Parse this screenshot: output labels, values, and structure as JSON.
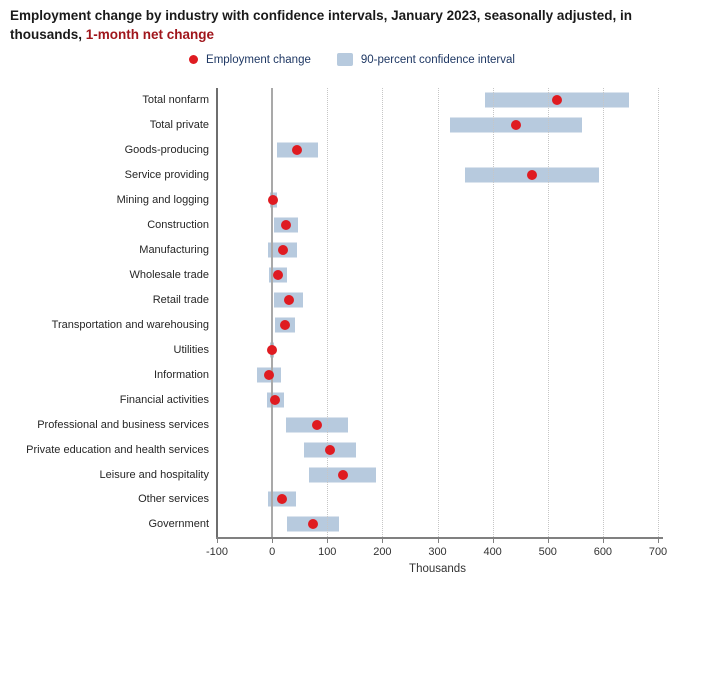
{
  "title": {
    "text": "Employment change by industry with confidence intervals, January 2023, seasonally adjusted, in thousands, ",
    "highlight": "1-month net change"
  },
  "legend": {
    "items": [
      {
        "label": "Employment change",
        "marker": "red-dot-icon"
      },
      {
        "label": "90-percent confidence interval",
        "marker": "blue-swatch-icon"
      }
    ]
  },
  "colors": {
    "employment_dot": "#df1b21",
    "confidence_bar": "#b7cade",
    "title_text": "#1a1a1a",
    "title_highlight": "#a0161c",
    "legend_text": "#1f3864",
    "axis_line": "#808080",
    "axis_left_line": "#6e6e6e",
    "zero_line": "#a9a9a9",
    "gridline": "#c6c6c6"
  },
  "chart_data": {
    "type": "scatter",
    "orientation": "horizontal",
    "title": "Employment change by industry with confidence intervals, January 2023, seasonally adjusted, in thousands, 1-month net change",
    "xlabel": "Thousands",
    "xlim": [
      -100,
      700
    ],
    "xticks": [
      -100,
      0,
      100,
      200,
      300,
      400,
      500,
      600,
      700
    ],
    "grid": "vertical-dotted",
    "legend_position": "top-center",
    "categories": [
      "Total nonfarm",
      "Total private",
      "Goods-producing",
      "Service providing",
      "Mining and logging",
      "Construction",
      "Manufacturing",
      "Wholesale trade",
      "Retail trade",
      "Transportation and warehousing",
      "Utilities",
      "Information",
      "Financial activities",
      "Professional and business services",
      "Private education and health services",
      "Leisure and hospitality",
      "Other services",
      "Government"
    ],
    "series": [
      {
        "name": "Employment change",
        "type": "point",
        "values": [
          517,
          443,
          46,
          471,
          2,
          25,
          19,
          11,
          30,
          23,
          -1,
          -5,
          6,
          82,
          105,
          128,
          18,
          74
        ]
      },
      {
        "name": "90-percent confidence interval",
        "type": "interval",
        "low": [
          387,
          323,
          8,
          349,
          -4,
          3,
          -8,
          -5,
          4,
          5,
          -4,
          -27,
          -10,
          26,
          57,
          67,
          -7,
          27
        ],
        "high": [
          647,
          563,
          84,
          593,
          8,
          47,
          46,
          27,
          56,
          41,
          3,
          17,
          22,
          138,
          153,
          189,
          43,
          121
        ]
      }
    ]
  }
}
